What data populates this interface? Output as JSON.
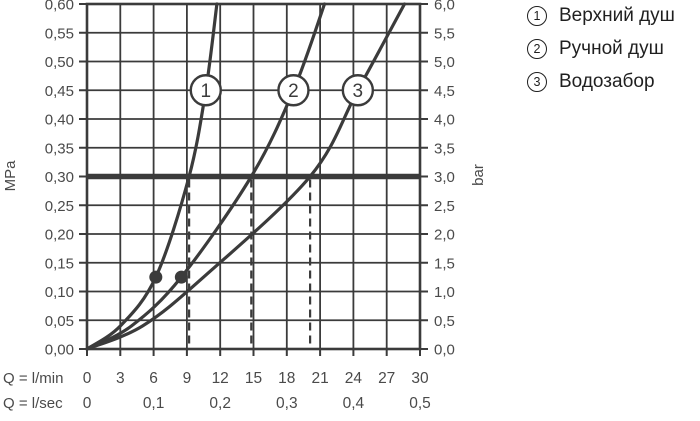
{
  "legend": {
    "items": [
      {
        "marker": "1",
        "label": "Верхний душ"
      },
      {
        "marker": "2",
        "label": "Ручной душ"
      },
      {
        "marker": "3",
        "label": "Водозабор"
      }
    ]
  },
  "chart_data": {
    "type": "line",
    "title": "",
    "y_axis_left": {
      "unit": "MPa",
      "range": [
        0,
        0.6
      ],
      "step": 0.05,
      "tick_labels": [
        "0,00",
        "0,05",
        "0,10",
        "0,15",
        "0,20",
        "0,25",
        "0,30",
        "0,35",
        "0,40",
        "0,45",
        "0,50",
        "0,55",
        "0,60"
      ]
    },
    "y_axis_right": {
      "unit": "bar",
      "range": [
        0,
        6
      ],
      "step": 0.5,
      "tick_labels": [
        "0,0",
        "0,5",
        "1,0",
        "1,5",
        "2,0",
        "2,5",
        "3,0",
        "3,5",
        "4,0",
        "4,5",
        "5,0",
        "5,5",
        "6,0"
      ]
    },
    "x_axis": {
      "row1_label": "Q = l/min",
      "row2_label": "Q = l/sec",
      "range": [
        0,
        30
      ],
      "row1_ticks": [
        0,
        3,
        6,
        9,
        12,
        15,
        18,
        21,
        24,
        27,
        30
      ],
      "row2_ticks": [
        {
          "label": "0",
          "at_lmin": 0
        },
        {
          "label": "0,1",
          "at_lmin": 6
        },
        {
          "label": "0,2",
          "at_lmin": 12
        },
        {
          "label": "0,3",
          "at_lmin": 18
        },
        {
          "label": "0,4",
          "at_lmin": 24
        },
        {
          "label": "0,5",
          "at_lmin": 30
        }
      ]
    },
    "grid": {
      "visible": true,
      "x_step_lmin": 3,
      "y_step_mpa": 0.05
    },
    "reference_line_mpa": 0.3,
    "series": [
      {
        "id": 1,
        "name": "Верхний душ",
        "points_lmin_mpa": [
          [
            0,
            0
          ],
          [
            3,
            0.04
          ],
          [
            6.2,
            0.125
          ],
          [
            9.2,
            0.3
          ],
          [
            10.7,
            0.45
          ],
          [
            11.7,
            0.6
          ]
        ],
        "number_marker_at": [
          10.7,
          0.45
        ],
        "dot_at": [
          6.2,
          0.125
        ],
        "drop_line_at_lmin": 9.2
      },
      {
        "id": 2,
        "name": "Ручной душ",
        "points_lmin_mpa": [
          [
            0,
            0
          ],
          [
            4,
            0.04
          ],
          [
            8.5,
            0.125
          ],
          [
            14.8,
            0.3
          ],
          [
            18.6,
            0.45
          ],
          [
            21.4,
            0.6
          ]
        ],
        "number_marker_at": [
          18.6,
          0.45
        ],
        "dot_at": [
          8.5,
          0.125
        ],
        "drop_line_at_lmin": 14.8
      },
      {
        "id": 3,
        "name": "Водозабор",
        "points_lmin_mpa": [
          [
            0,
            0
          ],
          [
            5,
            0.04
          ],
          [
            10.5,
            0.125
          ],
          [
            20.1,
            0.3
          ],
          [
            24.4,
            0.45
          ],
          [
            28.6,
            0.6
          ]
        ],
        "number_marker_at": [
          24.4,
          0.45
        ],
        "dot_at": null,
        "drop_line_at_lmin": 20.1
      }
    ],
    "legend_position": "top-right",
    "colors": {
      "line": "#3b3b3b",
      "grid": "#3b3b3b",
      "reference_line": "#3b3b3b",
      "axis_text": "#4a4a4a",
      "legend_text": "#1f1f1f",
      "background": "#ffffff"
    }
  }
}
